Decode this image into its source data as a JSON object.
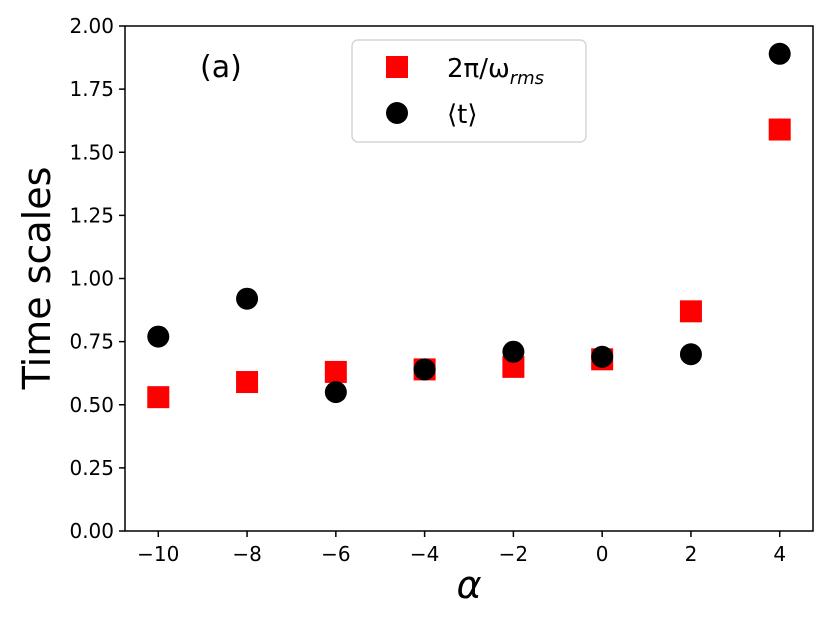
{
  "chart_data": {
    "type": "scatter",
    "title": "",
    "panel_label": "(a)",
    "xlabel": "α",
    "ylabel": "Time scales",
    "xlim": [
      -10.75,
      4.75
    ],
    "ylim": [
      0,
      2
    ],
    "x_ticks": [
      -10,
      -8,
      -6,
      -4,
      -2,
      0,
      2,
      4
    ],
    "x_tick_labels": [
      "−10",
      "−8",
      "−6",
      "−4",
      "−2",
      "0",
      "2",
      "4"
    ],
    "y_ticks": [
      0,
      0.25,
      0.5,
      0.75,
      1.0,
      1.25,
      1.5,
      1.75,
      2.0
    ],
    "y_tick_labels": [
      "0.00",
      "0.25",
      "0.50",
      "0.75",
      "1.00",
      "1.25",
      "1.50",
      "1.75",
      "2.00"
    ],
    "grid": false,
    "legend_position": "top-center",
    "series": [
      {
        "name": "2π/ω_rms",
        "name_parts": {
          "main": "2π/ω",
          "sub": "rms"
        },
        "marker": "square",
        "color": "#ff0000",
        "x": [
          -10,
          -8,
          -6,
          -4,
          -2,
          0,
          2,
          4
        ],
        "y": [
          0.53,
          0.59,
          0.63,
          0.64,
          0.65,
          0.68,
          0.87,
          1.59
        ]
      },
      {
        "name": "⟨t⟩",
        "marker": "circle",
        "color": "#000000",
        "x": [
          -10,
          -8,
          -6,
          -4,
          -2,
          0,
          2,
          4
        ],
        "y": [
          0.77,
          0.92,
          0.55,
          0.64,
          0.71,
          0.69,
          0.7,
          1.89
        ]
      }
    ]
  }
}
